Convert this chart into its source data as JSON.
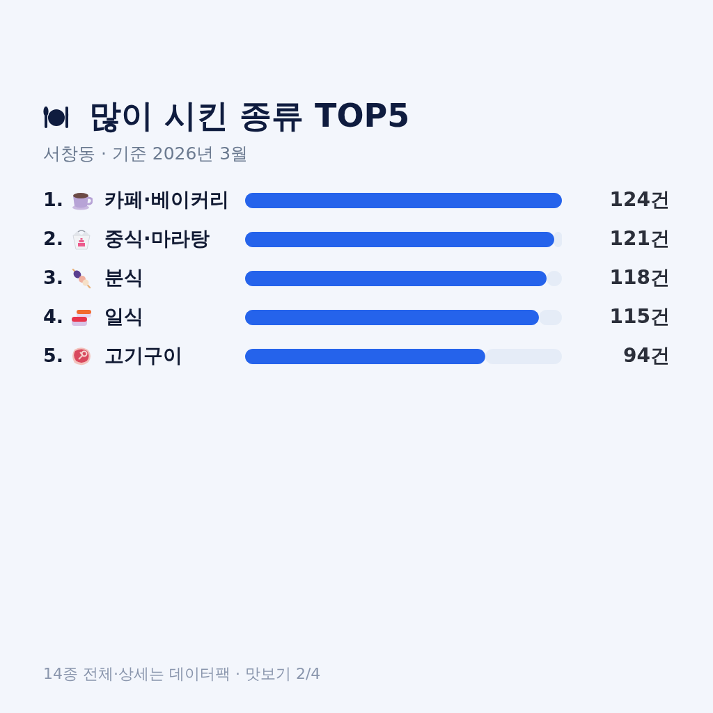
{
  "chart_data": {
    "type": "bar",
    "orientation": "horizontal",
    "title": "많이 시킨 종류 TOP5",
    "subtitle": "서창동 · 기준 2026년 3월",
    "categories": [
      "1. 카페·베이커리",
      "2. 중식·마라탕",
      "3. 분식",
      "4. 일식",
      "5. 고기구이"
    ],
    "values": [
      124,
      121,
      118,
      115,
      94
    ],
    "color": "#2563eb",
    "value_labels": [
      "124건",
      "121건",
      "118건",
      "115건",
      "94건"
    ],
    "annotations": [
      "14종 전체·상세는 데이터팩 · 맛보기 2/4"
    ]
  }
}
